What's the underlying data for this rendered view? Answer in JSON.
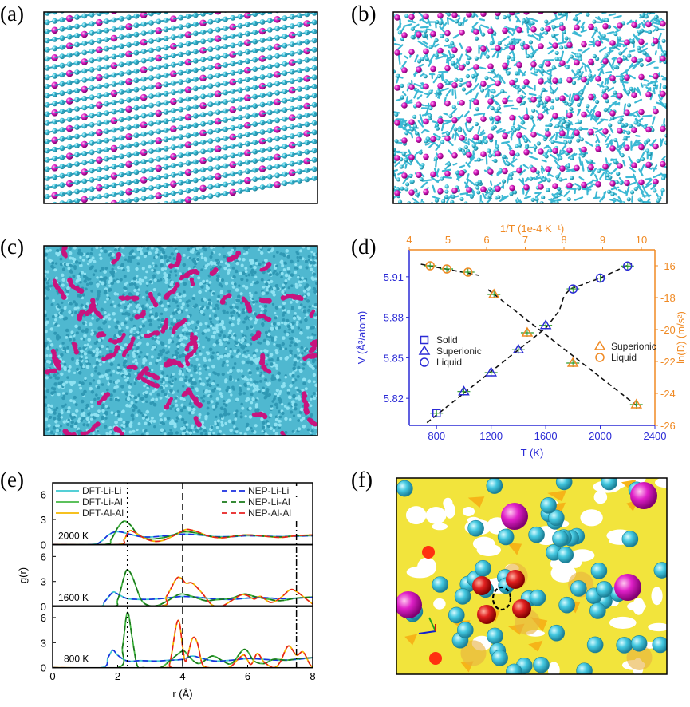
{
  "panel_labels": [
    "(a)",
    "(b)",
    "(c)",
    "(d)",
    "(e)",
    "(f)"
  ],
  "colors": {
    "li_atom": "#3cc4dc",
    "al_atom": "#d8168c",
    "left_axis": "#2b2bd6",
    "right_axis": "#f08a24",
    "charge_density": "#f2e43c",
    "cluster_atom": "#e02020"
  },
  "chart_data": [
    {
      "panel": "(d)",
      "type": "scatter",
      "xlabel": "T (K)",
      "xlim": [
        600,
        2400
      ],
      "xticks": [
        800,
        1200,
        1600,
        2000,
        2400
      ],
      "x2label": "1/T (1e-4 K⁻¹)",
      "x2lim": [
        4,
        10.35
      ],
      "x2ticks": [
        4,
        5,
        6,
        7,
        8,
        9,
        10
      ],
      "ylabel": "V (Å³/atom)",
      "ylim": [
        5.8,
        5.93
      ],
      "yticks": [
        5.82,
        5.85,
        5.88,
        5.91
      ],
      "y2label": "ln(D) (m/s²)",
      "y2lim": [
        -26,
        -15
      ],
      "y2ticks": [
        -26,
        -24,
        -22,
        -20,
        -18,
        -16
      ],
      "grid": false,
      "series": [
        {
          "name": "Solid",
          "axis": "left",
          "marker": "square",
          "color": "#2b2bd6",
          "x": [
            800
          ],
          "y": [
            5.809
          ]
        },
        {
          "name": "Superionic",
          "axis": "left",
          "marker": "triangle",
          "color": "#2b2bd6",
          "x": [
            1000,
            1200,
            1400,
            1600
          ],
          "y": [
            5.825,
            5.839,
            5.856,
            5.874
          ]
        },
        {
          "name": "Liquid",
          "axis": "left",
          "marker": "circle",
          "color": "#2b2bd6",
          "x": [
            1800,
            2000,
            2200
          ],
          "y": [
            5.901,
            5.909,
            5.918
          ]
        },
        {
          "name": "Superionic",
          "axis": "right",
          "marker": "triangle",
          "color": "#f08a24",
          "x": [
            6.19,
            7.05,
            8.23,
            9.87
          ],
          "y": [
            -17.8,
            -20.2,
            -22.1,
            -24.7
          ]
        },
        {
          "name": "Liquid",
          "axis": "right",
          "marker": "circle",
          "color": "#f08a24",
          "x": [
            4.54,
            4.97,
            5.52
          ],
          "y": [
            -16.0,
            -16.2,
            -16.4
          ]
        }
      ],
      "fit_lines": [
        {
          "axis": "left",
          "points": [
            [
              730,
              5.802
            ],
            [
              1600,
              5.872
            ],
            [
              1700,
              5.885
            ],
            [
              1735,
              5.896
            ],
            [
              1780,
              5.901
            ],
            [
              2000,
              5.909
            ],
            [
              2230,
              5.92
            ]
          ]
        },
        {
          "axis": "right",
          "points": [
            [
              4.3,
              -15.9
            ],
            [
              5.8,
              -16.6
            ]
          ]
        },
        {
          "axis": "right",
          "points": [
            [
              6.04,
              -17.5
            ],
            [
              9.95,
              -24.9
            ]
          ]
        }
      ],
      "legend_left": [
        "Solid",
        "Superionic",
        "Liquid"
      ],
      "legend_right": [
        "Superionic",
        "Liquid"
      ]
    },
    {
      "panel": "(e)",
      "type": "line",
      "xlabel": "r (Å)",
      "ylabel": "g(r)",
      "xlim": [
        0,
        8
      ],
      "xticks": [
        0,
        2,
        4,
        6,
        8
      ],
      "ylim": [
        0,
        7.4
      ],
      "yticks": [
        0,
        3,
        6
      ],
      "reference_lines": [
        {
          "r": 2.3,
          "style": "dotted"
        },
        {
          "r": 4.0,
          "style": "dashed"
        },
        {
          "r": 7.5,
          "style": "dashdot"
        }
      ],
      "series": [
        {
          "name": "DFT-Li-Li",
          "pair": "Li-Li",
          "color": "#3cc8d0",
          "dash": false
        },
        {
          "name": "DFT-Li-Al",
          "pair": "Li-Al",
          "color": "#44b844",
          "dash": false
        },
        {
          "name": "DFT-Al-Al",
          "pair": "Al-Al",
          "color": "#f5b800",
          "dash": false
        },
        {
          "name": "NEP-Li-Li",
          "pair": "Li-Li",
          "color": "#1a2ee0",
          "dash": true
        },
        {
          "name": "NEP-Li-Al",
          "pair": "Li-Al",
          "color": "#1a7a1a",
          "dash": true
        },
        {
          "name": "NEP-Al-Al",
          "pair": "Al-Al",
          "color": "#e82020",
          "dash": true
        }
      ],
      "temperatures": [
        {
          "label": "2000 K",
          "g": {
            "Li-Li": [
              [
                0,
                0
              ],
              [
                1.2,
                0
              ],
              [
                1.5,
                0.4
              ],
              [
                1.7,
                1.1
              ],
              [
                1.9,
                1.5
              ],
              [
                2.1,
                1.5
              ],
              [
                2.4,
                1.2
              ],
              [
                2.7,
                0.95
              ],
              [
                3.0,
                0.9
              ],
              [
                3.5,
                1.05
              ],
              [
                4.0,
                1.25
              ],
              [
                4.5,
                1.15
              ],
              [
                5.0,
                0.95
              ],
              [
                5.5,
                0.95
              ],
              [
                6.0,
                1.05
              ],
              [
                6.5,
                1.0
              ],
              [
                7.0,
                0.95
              ],
              [
                7.5,
                1.0
              ],
              [
                8.0,
                1.05
              ]
            ],
            "Li-Al": [
              [
                0,
                0
              ],
              [
                1.6,
                0
              ],
              [
                1.8,
                0.6
              ],
              [
                2.0,
                2.0
              ],
              [
                2.2,
                2.8
              ],
              [
                2.4,
                2.3
              ],
              [
                2.6,
                1.3
              ],
              [
                2.9,
                0.7
              ],
              [
                3.2,
                0.7
              ],
              [
                3.6,
                1.0
              ],
              [
                4.0,
                1.5
              ],
              [
                4.4,
                1.4
              ],
              [
                4.8,
                1.0
              ],
              [
                5.2,
                0.85
              ],
              [
                5.6,
                1.0
              ],
              [
                6.0,
                1.15
              ],
              [
                6.5,
                1.0
              ],
              [
                7.0,
                0.9
              ],
              [
                7.5,
                1.05
              ],
              [
                8.0,
                1.1
              ]
            ],
            "Al-Al": [
              [
                0,
                0
              ],
              [
                2.0,
                0
              ],
              [
                2.2,
                0.6
              ],
              [
                2.35,
                1.6
              ],
              [
                2.5,
                1.5
              ],
              [
                2.8,
                0.8
              ],
              [
                3.1,
                0.4
              ],
              [
                3.4,
                0.5
              ],
              [
                3.8,
                1.2
              ],
              [
                4.1,
                1.8
              ],
              [
                4.4,
                1.6
              ],
              [
                4.8,
                1.0
              ],
              [
                5.2,
                0.8
              ],
              [
                5.6,
                1.0
              ],
              [
                6.0,
                1.15
              ],
              [
                6.5,
                1.0
              ],
              [
                7.0,
                0.85
              ],
              [
                7.5,
                1.05
              ],
              [
                8.0,
                1.15
              ]
            ]
          }
        },
        {
          "label": "1600 K",
          "g": {
            "Li-Li": [
              [
                0,
                0
              ],
              [
                1.4,
                0
              ],
              [
                1.6,
                0.6
              ],
              [
                1.85,
                1.7
              ],
              [
                2.0,
                1.5
              ],
              [
                2.3,
                0.95
              ],
              [
                2.8,
                0.85
              ],
              [
                3.2,
                0.9
              ],
              [
                3.6,
                1.05
              ],
              [
                4.0,
                1.2
              ],
              [
                4.5,
                1.1
              ],
              [
                5.0,
                0.9
              ],
              [
                5.5,
                0.85
              ],
              [
                6.0,
                1.0
              ],
              [
                6.5,
                1.05
              ],
              [
                7.0,
                0.95
              ],
              [
                7.5,
                1.0
              ],
              [
                8.0,
                1.1
              ]
            ],
            "Li-Al": [
              [
                0,
                0
              ],
              [
                1.8,
                0
              ],
              [
                2.0,
                0.8
              ],
              [
                2.2,
                3.6
              ],
              [
                2.3,
                4.4
              ],
              [
                2.45,
                3.6
              ],
              [
                2.7,
                1.0
              ],
              [
                2.9,
                0.2
              ],
              [
                3.2,
                0.1
              ],
              [
                3.5,
                0.6
              ],
              [
                3.8,
                1.3
              ],
              [
                4.0,
                1.5
              ],
              [
                4.3,
                1.2
              ],
              [
                4.7,
                0.7
              ],
              [
                5.0,
                0.8
              ],
              [
                5.5,
                1.0
              ],
              [
                5.9,
                1.5
              ],
              [
                6.2,
                1.2
              ],
              [
                6.6,
                0.9
              ],
              [
                7.0,
                0.7
              ],
              [
                7.5,
                1.0
              ],
              [
                8.0,
                1.15
              ]
            ],
            "Al-Al": [
              [
                0,
                0
              ],
              [
                3.2,
                0
              ],
              [
                3.5,
                1.2
              ],
              [
                3.8,
                3.3
              ],
              [
                3.95,
                3.4
              ],
              [
                4.1,
                2.8
              ],
              [
                4.3,
                2.8
              ],
              [
                4.6,
                1.6
              ],
              [
                4.9,
                0.2
              ],
              [
                5.2,
                0.05
              ],
              [
                5.5,
                0.7
              ],
              [
                5.8,
                1.4
              ],
              [
                6.0,
                1.3
              ],
              [
                6.2,
                0.9
              ],
              [
                6.4,
                1.2
              ],
              [
                6.7,
                0.5
              ],
              [
                7.0,
                1.0
              ],
              [
                7.3,
                2.0
              ],
              [
                7.5,
                1.8
              ],
              [
                7.8,
                0.9
              ],
              [
                8.0,
                0.3
              ]
            ]
          }
        },
        {
          "label": "800 K",
          "g": {
            "Li-Li": [
              [
                0,
                0
              ],
              [
                1.5,
                0
              ],
              [
                1.7,
                1.2
              ],
              [
                1.85,
                2.1
              ],
              [
                2.0,
                1.5
              ],
              [
                2.3,
                0.8
              ],
              [
                2.7,
                0.85
              ],
              [
                3.2,
                0.8
              ],
              [
                3.6,
                0.9
              ],
              [
                4.0,
                1.0
              ],
              [
                4.3,
                1.4
              ],
              [
                4.6,
                1.1
              ],
              [
                5.0,
                0.8
              ],
              [
                5.5,
                0.9
              ],
              [
                6.0,
                1.1
              ],
              [
                6.5,
                1.0
              ],
              [
                7.0,
                0.9
              ],
              [
                7.5,
                1.0
              ],
              [
                8.0,
                1.2
              ]
            ],
            "Li-Al": [
              [
                0,
                0
              ],
              [
                2.0,
                0
              ],
              [
                2.15,
                2.5
              ],
              [
                2.3,
                6.6
              ],
              [
                2.45,
                3.5
              ],
              [
                2.6,
                0.3
              ],
              [
                2.8,
                0
              ],
              [
                3.3,
                0
              ],
              [
                3.6,
                0.8
              ],
              [
                4.0,
                2.0
              ],
              [
                4.2,
                1.3
              ],
              [
                4.5,
                0.5
              ],
              [
                4.9,
                1.4
              ],
              [
                5.2,
                0.9
              ],
              [
                5.5,
                0.5
              ],
              [
                5.9,
                2.2
              ],
              [
                6.2,
                0.8
              ],
              [
                6.5,
                0.5
              ],
              [
                6.8,
                1.0
              ],
              [
                7.2,
                0.9
              ],
              [
                7.6,
                1.1
              ],
              [
                8.0,
                1.2
              ]
            ],
            "Al-Al": [
              [
                0,
                0
              ],
              [
                3.4,
                0
              ],
              [
                3.6,
                0.5
              ],
              [
                3.8,
                5.0
              ],
              [
                3.9,
                5.4
              ],
              [
                4.0,
                2.5
              ],
              [
                4.1,
                0.8
              ],
              [
                4.3,
                3.5
              ],
              [
                4.45,
                3.0
              ],
              [
                4.6,
                0.5
              ],
              [
                4.8,
                0
              ],
              [
                5.4,
                0
              ],
              [
                5.7,
                1.0
              ],
              [
                5.9,
                1.5
              ],
              [
                6.1,
                0.4
              ],
              [
                6.3,
                1.7
              ],
              [
                6.5,
                0.7
              ],
              [
                6.8,
                0
              ],
              [
                7.0,
                0.7
              ],
              [
                7.25,
                2.6
              ],
              [
                7.5,
                1.5
              ],
              [
                7.7,
                1.9
              ],
              [
                7.9,
                0.5
              ],
              [
                8.0,
                0
              ]
            ]
          }
        }
      ]
    }
  ]
}
